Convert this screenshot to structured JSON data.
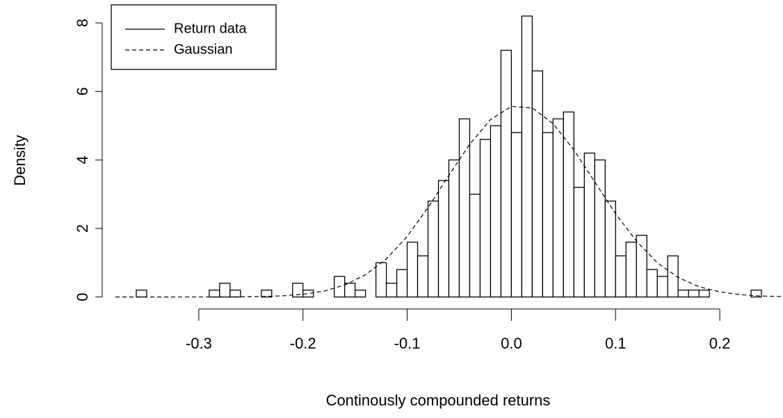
{
  "chart_data": {
    "type": "histogram",
    "xlabel": "Continously compounded returns",
    "ylabel": "Density",
    "xlim": [
      -0.384,
      0.264
    ],
    "ylim": [
      -0.33,
      8.5
    ],
    "xticks": [
      -0.3,
      -0.2,
      -0.1,
      {
        "value": 0,
        "label": "0.0"
      },
      0.1,
      0.2
    ],
    "yticks": [
      0,
      2,
      4,
      6,
      8
    ],
    "legend": "topleft",
    "series": [
      {
        "name": "Return data",
        "color": "#000000",
        "fill": "#ffffff",
        "dash": "solid",
        "bins": [
          -0.36,
          -0.35,
          -0.34,
          -0.33,
          -0.32,
          -0.31,
          -0.3,
          -0.29,
          -0.28,
          -0.27,
          -0.26,
          -0.25,
          -0.24,
          -0.23,
          -0.22,
          -0.21,
          -0.2,
          -0.19,
          -0.18,
          -0.17,
          -0.16,
          -0.15,
          -0.14,
          -0.13,
          -0.12,
          -0.11,
          -0.1,
          -0.09,
          -0.08,
          -0.07,
          -0.06,
          -0.05,
          -0.04,
          -0.03,
          -0.02,
          -0.01,
          0,
          0.01,
          0.02,
          0.03,
          0.04,
          0.05,
          0.06,
          0.07,
          0.08,
          0.09,
          0.1,
          0.11,
          0.12,
          0.13,
          0.14,
          0.15,
          0.16,
          0.17,
          0.18,
          0.19,
          0.2,
          0.21,
          0.22,
          0.23,
          0.24
        ],
        "values": [
          0.2,
          0,
          0,
          0,
          0,
          0,
          0,
          0.2,
          0.4,
          0.2,
          0,
          0,
          0.2,
          0,
          0,
          0.4,
          0.2,
          0,
          0,
          0.6,
          0.4,
          0.2,
          0,
          1.0,
          0.4,
          0.8,
          1.6,
          1.2,
          2.8,
          3.4,
          4.0,
          5.2,
          3.0,
          4.6,
          5.0,
          7.2,
          4.8,
          8.2,
          6.6,
          4.8,
          5.2,
          5.4,
          3.2,
          4.2,
          4.0,
          2.8,
          1.2,
          1.6,
          1.8,
          0.8,
          0.6,
          1.2,
          0.2,
          0.2,
          0.2,
          0,
          0,
          0,
          0,
          0.2
        ]
      },
      {
        "name": "Gaussian",
        "type": "line",
        "color": "#000000",
        "dash": "dashed",
        "x": [
          -0.38,
          -0.36,
          -0.34,
          -0.32,
          -0.3,
          -0.28,
          -0.26,
          -0.24,
          -0.22,
          -0.2,
          -0.18,
          -0.16,
          -0.14,
          -0.12,
          -0.1,
          -0.08,
          -0.06,
          -0.04,
          -0.02,
          0,
          0.02,
          0.04,
          0.06,
          0.08,
          0.1,
          0.12,
          0.14,
          0.16,
          0.18,
          0.2,
          0.22,
          0.24,
          0.26
        ],
        "values": [
          0,
          0,
          0,
          0.0001,
          0.0005,
          0.0016,
          0.0047,
          0.013,
          0.033,
          0.078,
          0.17,
          0.35,
          0.65,
          1.11,
          1.77,
          2.61,
          3.55,
          4.46,
          5.18,
          5.56,
          5.52,
          5.06,
          4.29,
          3.36,
          2.43,
          1.63,
          1.0,
          0.57,
          0.3,
          0.15,
          0.067,
          0.028,
          0.011
        ]
      }
    ]
  }
}
